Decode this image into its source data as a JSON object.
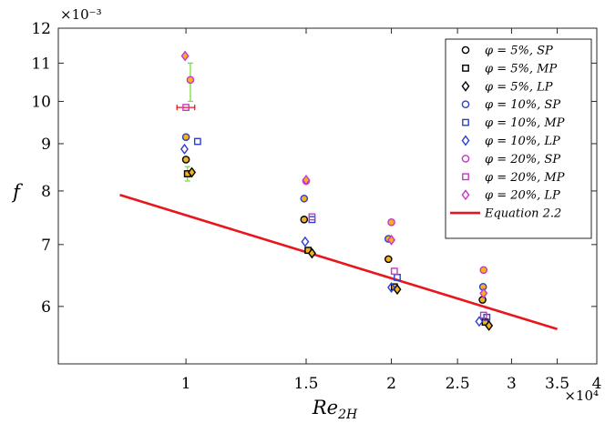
{
  "chart_data": {
    "type": "scatter",
    "xscale": "log",
    "yscale": "log",
    "xlim": [
      6500,
      40000
    ],
    "ylim": [
      0.0052,
      0.012
    ],
    "xticks": [
      10000,
      15000,
      20000,
      25000,
      30000,
      35000,
      40000
    ],
    "xtick_labels": [
      "1",
      "1.5",
      "2",
      "2.5",
      "3",
      "3.5",
      "4"
    ],
    "x_multiplier": "×10⁴",
    "yticks": [
      0.006,
      0.007,
      0.008,
      0.009,
      0.01,
      0.011,
      0.012
    ],
    "ytick_labels": [
      "6",
      "7",
      "8",
      "9",
      "10",
      "11",
      "12"
    ],
    "y_multiplier": "×10⁻³",
    "xlabel": "Re",
    "xlabel_sub": "2H",
    "ylabel": "f",
    "legend_position": "top-right",
    "colors": {
      "black": "#000000",
      "blue": "#2a3fd6",
      "magenta": "#cc33cc",
      "red": "#e8161d",
      "gold": "#f2b21e",
      "green": "#7ddc3c"
    },
    "series": [
      {
        "name": "φ = 5%, SP",
        "marker": "circle",
        "edge": "black",
        "fill": "gold",
        "x": [
          10000,
          14900,
          19800,
          27200
        ],
        "y": [
          0.00865,
          0.00745,
          0.00675,
          0.0061
        ]
      },
      {
        "name": "φ = 5%, MP",
        "marker": "square",
        "edge": "black",
        "fill": "gold",
        "x": [
          10050,
          15100,
          20200,
          27450
        ],
        "y": [
          0.00835,
          0.0069,
          0.0063,
          0.00577
        ]
      },
      {
        "name": "φ = 5%, LP",
        "marker": "diamond",
        "edge": "black",
        "fill": "gold",
        "x": [
          10200,
          15300,
          20400,
          27800
        ],
        "y": [
          0.00838,
          0.00685,
          0.00626,
          0.00572
        ]
      },
      {
        "name": "φ = 10%, SP",
        "marker": "circle",
        "edge": "blue",
        "fill": "gold",
        "x": [
          10000,
          14900,
          19800,
          27250
        ],
        "y": [
          0.00915,
          0.00785,
          0.0071,
          0.0063
        ]
      },
      {
        "name": "φ = 10%, MP",
        "marker": "square",
        "edge": "blue",
        "fill": "none",
        "x": [
          10400,
          15300,
          20400,
          27600
        ],
        "y": [
          0.00905,
          0.00745,
          0.00645,
          0.00584
        ]
      },
      {
        "name": "φ = 10%, LP",
        "marker": "diamond",
        "edge": "blue",
        "fill": "none",
        "x": [
          9950,
          14950,
          20000,
          26900
        ],
        "y": [
          0.00888,
          0.00705,
          0.00629,
          0.00578
        ]
      },
      {
        "name": "φ = 20%, SP",
        "marker": "circle",
        "edge": "magenta",
        "fill": "gold",
        "x": [
          10150,
          15000,
          20000,
          27300
        ],
        "y": [
          0.01055,
          0.0082,
          0.0074,
          0.00657
        ]
      },
      {
        "name": "φ = 20%, MP",
        "marker": "square",
        "edge": "magenta",
        "fill": "none",
        "x": [
          10000,
          15300,
          20200,
          27300
        ],
        "y": [
          0.00985,
          0.0075,
          0.00655,
          0.00587
        ]
      },
      {
        "name": "φ = 20%, LP",
        "marker": "diamond",
        "edge": "magenta",
        "fill": "gold",
        "x": [
          9970,
          15000,
          20000,
          27300
        ],
        "y": [
          0.0112,
          0.00822,
          0.00708,
          0.0062
        ]
      },
      {
        "name": "Equation 2.2",
        "marker": "line",
        "edge": "red",
        "fill": "none",
        "x": [
          8000,
          35000
        ],
        "y": [
          0.00792,
          0.00567
        ]
      }
    ],
    "error_bars": [
      {
        "color": "green",
        "x": 10150,
        "y_low": 0.01,
        "y_high": 0.011
      },
      {
        "color": "green",
        "x": 10050,
        "y_low": 0.0082,
        "y_high": 0.0085
      },
      {
        "color": "red",
        "x": 10000,
        "x_low": 9700,
        "x_high": 10300,
        "y": 0.00985
      }
    ]
  }
}
